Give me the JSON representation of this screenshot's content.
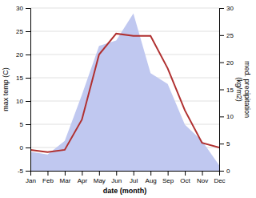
{
  "chart_data": {
    "type": "line",
    "xlabel": "date (month)",
    "ylabel": "max temp (C)",
    "y2label": "med. precipitation\n(kg/m2)",
    "categories": [
      "Jan",
      "Feb",
      "Mar",
      "Apr",
      "May",
      "Jun",
      "Jul",
      "Aug",
      "Sep",
      "Oct",
      "Nov",
      "Dec"
    ],
    "series": [
      {
        "type": "area",
        "axis": "y2",
        "color": "#c0c8f0",
        "values": [
          3.5,
          3.0,
          5.5,
          14.0,
          23.0,
          24.0,
          29.0,
          18.0,
          16.0,
          8.5,
          5.5,
          1.0
        ]
      },
      {
        "type": "line",
        "color": "#b03030",
        "values": [
          -0.5,
          -1.0,
          -0.5,
          6.0,
          20.0,
          24.5,
          24.0,
          24.0,
          17.0,
          8.0,
          1.0,
          0.0
        ]
      }
    ],
    "ylim": [
      -5,
      30
    ],
    "yticks": [
      -5,
      0,
      5,
      10,
      15,
      20,
      25,
      30
    ],
    "y2lim": [
      0,
      30
    ],
    "y2ticks": [
      0,
      5,
      10,
      15,
      20,
      25,
      30
    ],
    "grid": true
  }
}
